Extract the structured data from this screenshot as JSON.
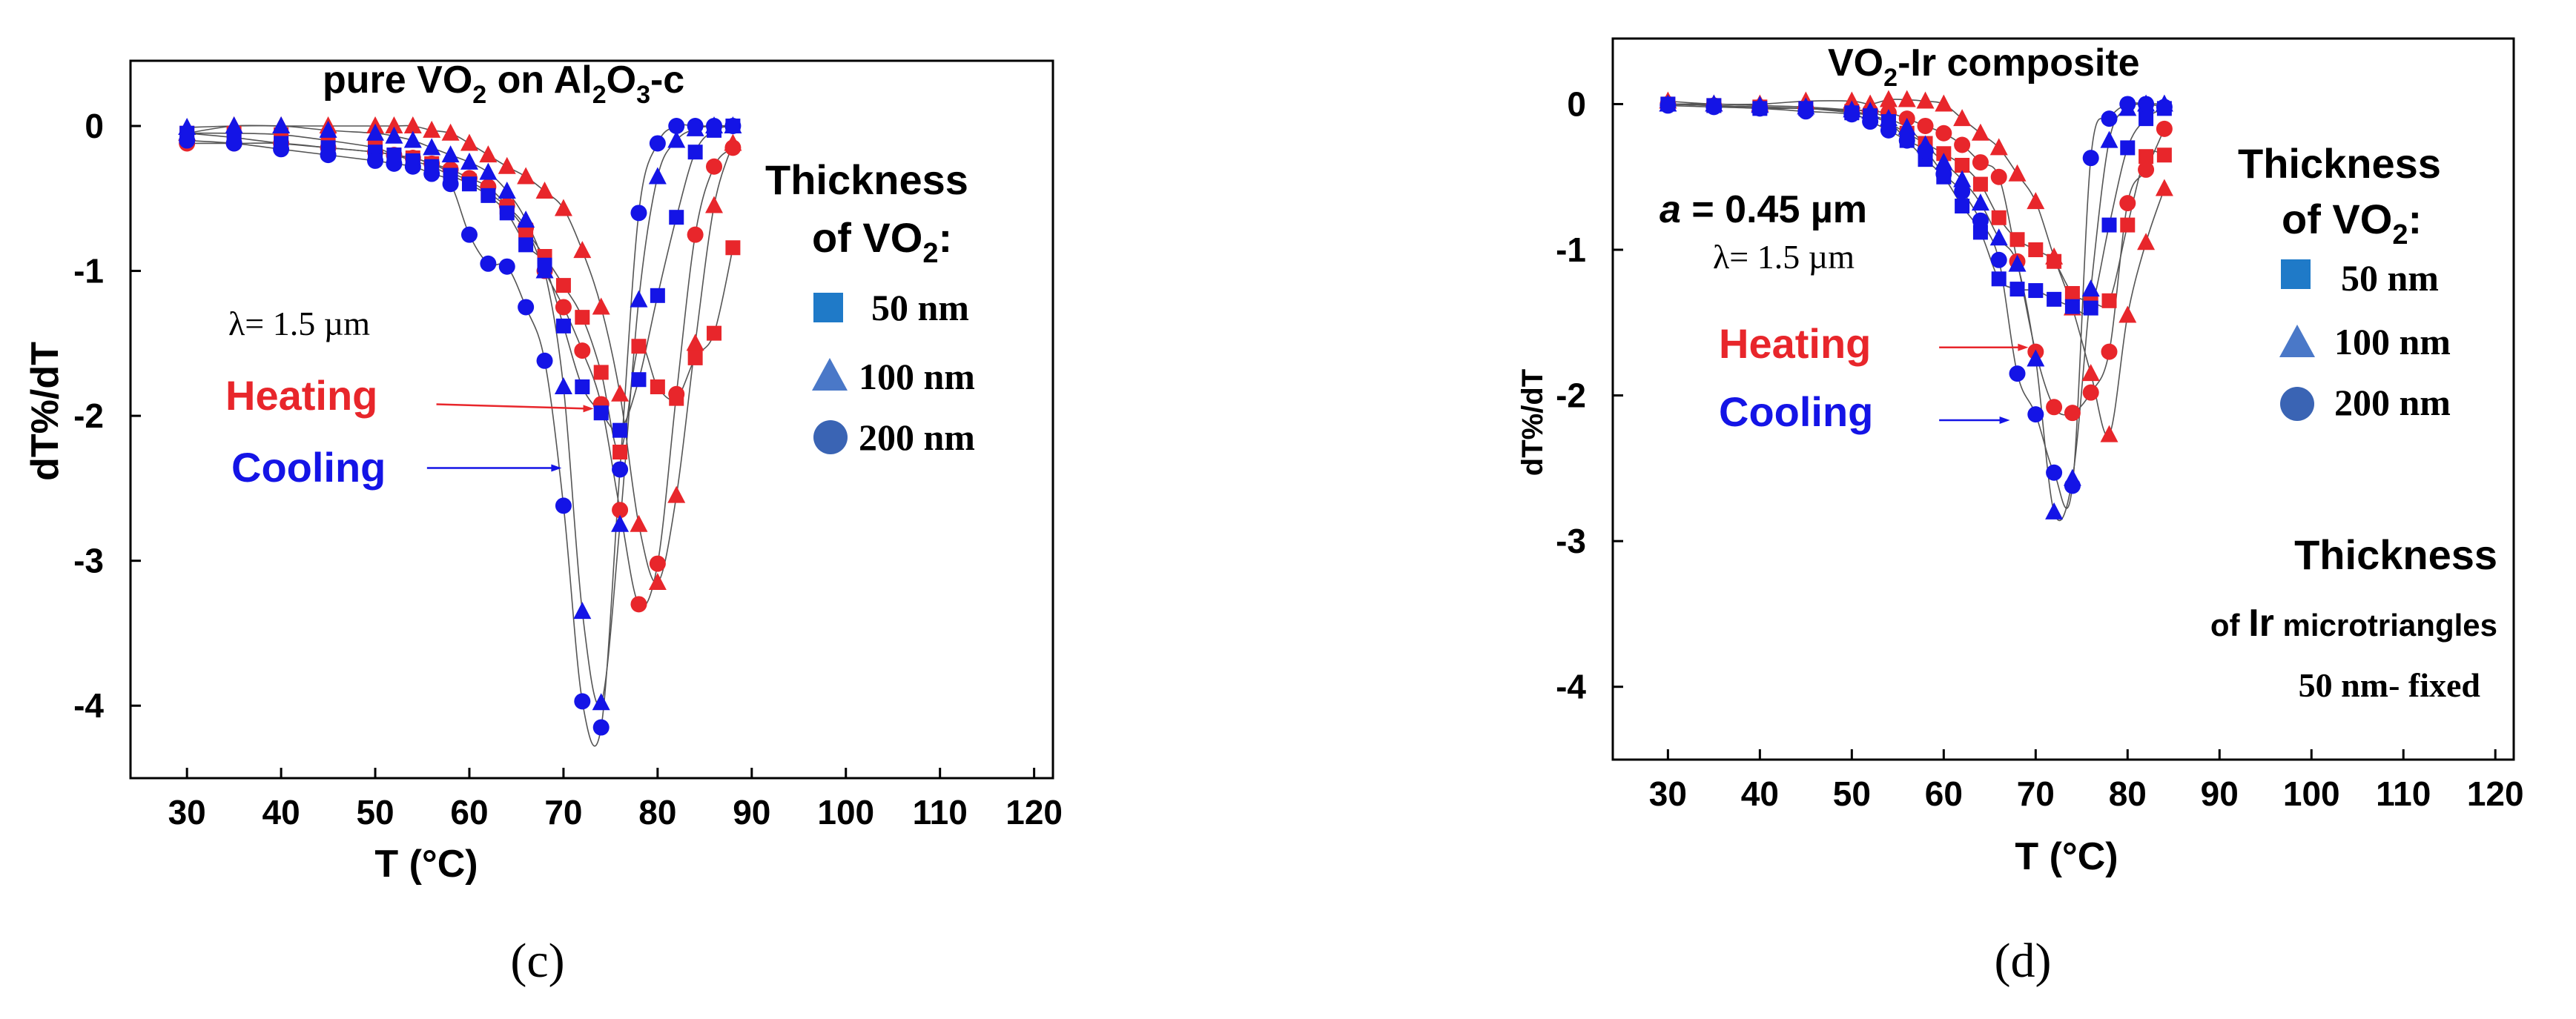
{
  "chart_data": [
    {
      "type": "scatter",
      "panel_label": "(c)",
      "title_parts": [
        "pure VO",
        "2",
        " on Al",
        "2",
        "O",
        "3",
        "-c"
      ],
      "xlabel": "T (°C)",
      "ylabel": "dT%/dT",
      "xlim": [
        24,
        122
      ],
      "ylim": [
        -4.5,
        0.45
      ],
      "xticks": [
        30,
        40,
        50,
        60,
        70,
        80,
        90,
        100,
        110,
        120
      ],
      "yticks": [
        0,
        -1,
        -2,
        -3,
        -4
      ],
      "legend_title": [
        "Thickness",
        "of VO",
        "2",
        ":"
      ],
      "legend": [
        {
          "marker": "square",
          "label": "50 nm"
        },
        {
          "marker": "triangle",
          "label": "100 nm"
        },
        {
          "marker": "circle",
          "label": "200 nm"
        }
      ],
      "wavelength_label": "λ= 1.5 µm",
      "heating_label": "Heating",
      "cooling_label": "Cooling",
      "heating_arrow": {
        "from": [
          56.5,
          -1.92
        ],
        "to": [
          73.2,
          -1.95
        ]
      },
      "cooling_arrow": {
        "from": [
          55.5,
          -2.36
        ],
        "to": [
          69.8,
          -2.36
        ]
      },
      "series": [
        {
          "name": "Heating 50 nm",
          "color": "#e8262b",
          "marker": "square",
          "x": [
            30,
            35,
            40,
            45,
            50,
            52,
            54,
            56,
            58,
            60,
            62,
            64,
            66,
            68,
            70,
            72,
            74,
            76,
            78,
            80,
            82,
            84,
            86,
            88
          ],
          "y": [
            -0.05,
            -0.05,
            -0.06,
            -0.1,
            -0.15,
            -0.2,
            -0.22,
            -0.26,
            -0.32,
            -0.38,
            -0.46,
            -0.56,
            -0.72,
            -0.9,
            -1.1,
            -1.32,
            -1.7,
            -2.25,
            -1.52,
            -1.8,
            -1.88,
            -1.6,
            -1.43,
            -0.84
          ]
        },
        {
          "name": "Heating 100 nm",
          "color": "#e8262b",
          "marker": "triangle",
          "x": [
            30,
            35,
            40,
            45,
            50,
            52,
            54,
            56,
            58,
            60,
            62,
            64,
            66,
            68,
            70,
            72,
            74,
            76,
            78,
            80,
            82,
            84,
            86,
            88
          ],
          "y": [
            -0.05,
            0.0,
            0.0,
            0.0,
            0.0,
            0.0,
            0.0,
            -0.03,
            -0.05,
            -0.12,
            -0.2,
            -0.28,
            -0.35,
            -0.45,
            -0.57,
            -0.86,
            -1.25,
            -1.85,
            -2.75,
            -3.15,
            -2.55,
            -1.5,
            -0.55,
            -0.12
          ]
        },
        {
          "name": "Heating 200 nm",
          "color": "#e8262b",
          "marker": "circle",
          "x": [
            30,
            35,
            40,
            45,
            50,
            52,
            54,
            56,
            58,
            60,
            62,
            64,
            66,
            68,
            70,
            72,
            74,
            76,
            78,
            80,
            82,
            84,
            86,
            88
          ],
          "y": [
            -0.12,
            -0.12,
            -0.12,
            -0.15,
            -0.18,
            -0.2,
            -0.22,
            -0.26,
            -0.3,
            -0.36,
            -0.42,
            -0.55,
            -0.7,
            -1.0,
            -1.25,
            -1.55,
            -1.92,
            -2.65,
            -3.3,
            -3.02,
            -1.85,
            -0.75,
            -0.28,
            -0.15
          ]
        },
        {
          "name": "Cooling 50 nm",
          "color": "#1414e6",
          "marker": "square",
          "x": [
            30,
            35,
            40,
            45,
            50,
            52,
            54,
            56,
            58,
            60,
            62,
            64,
            66,
            68,
            70,
            72,
            74,
            76,
            78,
            80,
            82,
            84,
            86,
            88
          ],
          "y": [
            -0.05,
            -0.08,
            -0.12,
            -0.15,
            -0.18,
            -0.2,
            -0.24,
            -0.28,
            -0.34,
            -0.4,
            -0.48,
            -0.6,
            -0.82,
            -0.96,
            -1.38,
            -1.8,
            -1.98,
            -2.1,
            -1.75,
            -1.17,
            -0.63,
            -0.18,
            -0.03,
            0.0
          ]
        },
        {
          "name": "Cooling 100 nm",
          "color": "#1414e6",
          "marker": "triangle",
          "x": [
            30,
            35,
            40,
            45,
            50,
            52,
            54,
            56,
            58,
            60,
            62,
            64,
            66,
            68,
            70,
            72,
            74,
            76,
            78,
            80,
            82,
            84,
            86,
            88
          ],
          "y": [
            -0.01,
            0.0,
            0.0,
            -0.03,
            -0.05,
            -0.07,
            -0.1,
            -0.15,
            -0.2,
            -0.25,
            -0.32,
            -0.45,
            -0.65,
            -1.0,
            -1.8,
            -3.35,
            -3.98,
            -2.75,
            -1.2,
            -0.35,
            -0.1,
            -0.02,
            0.0,
            0.0
          ]
        },
        {
          "name": "Cooling 200 nm",
          "color": "#1414e6",
          "marker": "circle",
          "x": [
            30,
            35,
            40,
            45,
            50,
            52,
            54,
            56,
            58,
            60,
            62,
            64,
            66,
            68,
            70,
            72,
            74,
            76,
            78,
            80,
            82,
            84,
            86,
            88
          ],
          "y": [
            -0.1,
            -0.12,
            -0.16,
            -0.2,
            -0.24,
            -0.26,
            -0.28,
            -0.33,
            -0.4,
            -0.75,
            -0.95,
            -0.97,
            -1.25,
            -1.62,
            -2.62,
            -3.97,
            -4.15,
            -2.37,
            -0.6,
            -0.12,
            0.0,
            0.0,
            0.0,
            0.0
          ]
        }
      ]
    },
    {
      "type": "scatter",
      "panel_label": "(d)",
      "title_parts": [
        "VO",
        "2",
        "-Ir composite"
      ],
      "xlabel": "T (°C)",
      "ylabel": "dT%/dT",
      "xlim": [
        24,
        122
      ],
      "ylim": [
        -4.5,
        0.45
      ],
      "xticks": [
        30,
        40,
        50,
        60,
        70,
        80,
        90,
        100,
        110,
        120
      ],
      "yticks": [
        0,
        -1,
        -2,
        -3,
        -4
      ],
      "legend_title": [
        "Thickness",
        "of VO",
        "2",
        ":"
      ],
      "legend": [
        {
          "marker": "square",
          "label": "50 nm"
        },
        {
          "marker": "triangle",
          "label": "100 nm"
        },
        {
          "marker": "circle",
          "label": "200 nm"
        }
      ],
      "period_label_italic": "a",
      "period_label_rest": " = 0.45 µm",
      "wavelength_label": "λ= 1.5 µm",
      "heating_label": "Heating",
      "cooling_label": "Cooling",
      "heating_arrow": {
        "from": [
          59.5,
          -1.67
        ],
        "to": [
          69.2,
          -1.67
        ]
      },
      "cooling_arrow": {
        "from": [
          59.5,
          -2.17
        ],
        "to": [
          67.2,
          -2.17
        ]
      },
      "ir_text": [
        "Thickness",
        "of ",
        "Ir",
        " microtriangles",
        "50 nm- fixed"
      ],
      "series": [
        {
          "name": "Heating 50 nm",
          "color": "#e8262b",
          "marker": "square",
          "x": [
            30,
            35,
            40,
            45,
            50,
            52,
            54,
            56,
            58,
            60,
            62,
            64,
            66,
            68,
            70,
            72,
            74,
            76,
            78,
            80,
            82,
            84
          ],
          "y": [
            0.0,
            -0.01,
            -0.02,
            -0.03,
            -0.05,
            -0.08,
            -0.13,
            -0.2,
            -0.27,
            -0.34,
            -0.42,
            -0.55,
            -0.78,
            -0.93,
            -1.0,
            -1.08,
            -1.3,
            -1.35,
            -1.35,
            -0.83,
            -0.36,
            -0.35
          ]
        },
        {
          "name": "Heating 100 nm",
          "color": "#e8262b",
          "marker": "triangle",
          "x": [
            30,
            35,
            40,
            45,
            50,
            52,
            54,
            56,
            58,
            60,
            62,
            64,
            66,
            68,
            70,
            72,
            74,
            76,
            78,
            80,
            82,
            84
          ],
          "y": [
            0.02,
            0.0,
            0.0,
            0.02,
            0.02,
            0.0,
            0.03,
            0.03,
            0.02,
            0.0,
            -0.1,
            -0.2,
            -0.3,
            -0.48,
            -0.67,
            -1.05,
            -1.4,
            -1.85,
            -2.27,
            -1.45,
            -0.95,
            -0.58
          ]
        },
        {
          "name": "Heating 200 nm",
          "color": "#e8262b",
          "marker": "circle",
          "x": [
            30,
            35,
            40,
            45,
            50,
            52,
            54,
            56,
            58,
            60,
            62,
            64,
            66,
            68,
            70,
            72,
            74,
            76,
            78,
            80,
            82,
            84
          ],
          "y": [
            0.0,
            -0.01,
            -0.02,
            -0.03,
            -0.04,
            -0.05,
            -0.06,
            -0.1,
            -0.15,
            -0.2,
            -0.28,
            -0.4,
            -0.5,
            -1.08,
            -1.7,
            -2.08,
            -2.12,
            -1.98,
            -1.7,
            -0.68,
            -0.45,
            -0.17
          ]
        },
        {
          "name": "Cooling 50 nm",
          "color": "#1414e6",
          "marker": "square",
          "x": [
            30,
            35,
            40,
            45,
            50,
            52,
            54,
            56,
            58,
            60,
            62,
            64,
            66,
            68,
            70,
            72,
            74,
            76,
            78,
            80,
            82,
            84
          ],
          "y": [
            0.0,
            -0.01,
            -0.03,
            -0.03,
            -0.06,
            -0.08,
            -0.12,
            -0.25,
            -0.38,
            -0.5,
            -0.7,
            -0.88,
            -1.2,
            -1.27,
            -1.28,
            -1.34,
            -1.39,
            -1.4,
            -0.83,
            -0.3,
            -0.1,
            -0.03
          ]
        },
        {
          "name": "Cooling 100 nm",
          "color": "#1414e6",
          "marker": "triangle",
          "x": [
            30,
            35,
            40,
            45,
            50,
            52,
            54,
            56,
            58,
            60,
            62,
            64,
            66,
            68,
            70,
            72,
            74,
            76,
            78,
            80,
            82,
            84
          ],
          "y": [
            0.0,
            0.0,
            -0.01,
            -0.02,
            -0.04,
            -0.05,
            -0.1,
            -0.16,
            -0.28,
            -0.4,
            -0.52,
            -0.68,
            -0.92,
            -1.1,
            -1.75,
            -2.8,
            -2.57,
            -1.27,
            -0.25,
            -0.03,
            0.0,
            0.0
          ]
        },
        {
          "name": "Cooling 200 nm",
          "color": "#1414e6",
          "marker": "circle",
          "x": [
            30,
            35,
            40,
            45,
            50,
            52,
            54,
            56,
            58,
            60,
            62,
            64,
            66,
            68,
            70,
            72,
            74,
            76,
            78,
            80,
            82,
            84
          ],
          "y": [
            -0.01,
            -0.02,
            -0.03,
            -0.05,
            -0.07,
            -0.12,
            -0.18,
            -0.25,
            -0.32,
            -0.48,
            -0.6,
            -0.8,
            -1.07,
            -1.85,
            -2.13,
            -2.53,
            -2.62,
            -0.37,
            -0.1,
            0.0,
            0.0,
            -0.02
          ]
        }
      ]
    }
  ]
}
